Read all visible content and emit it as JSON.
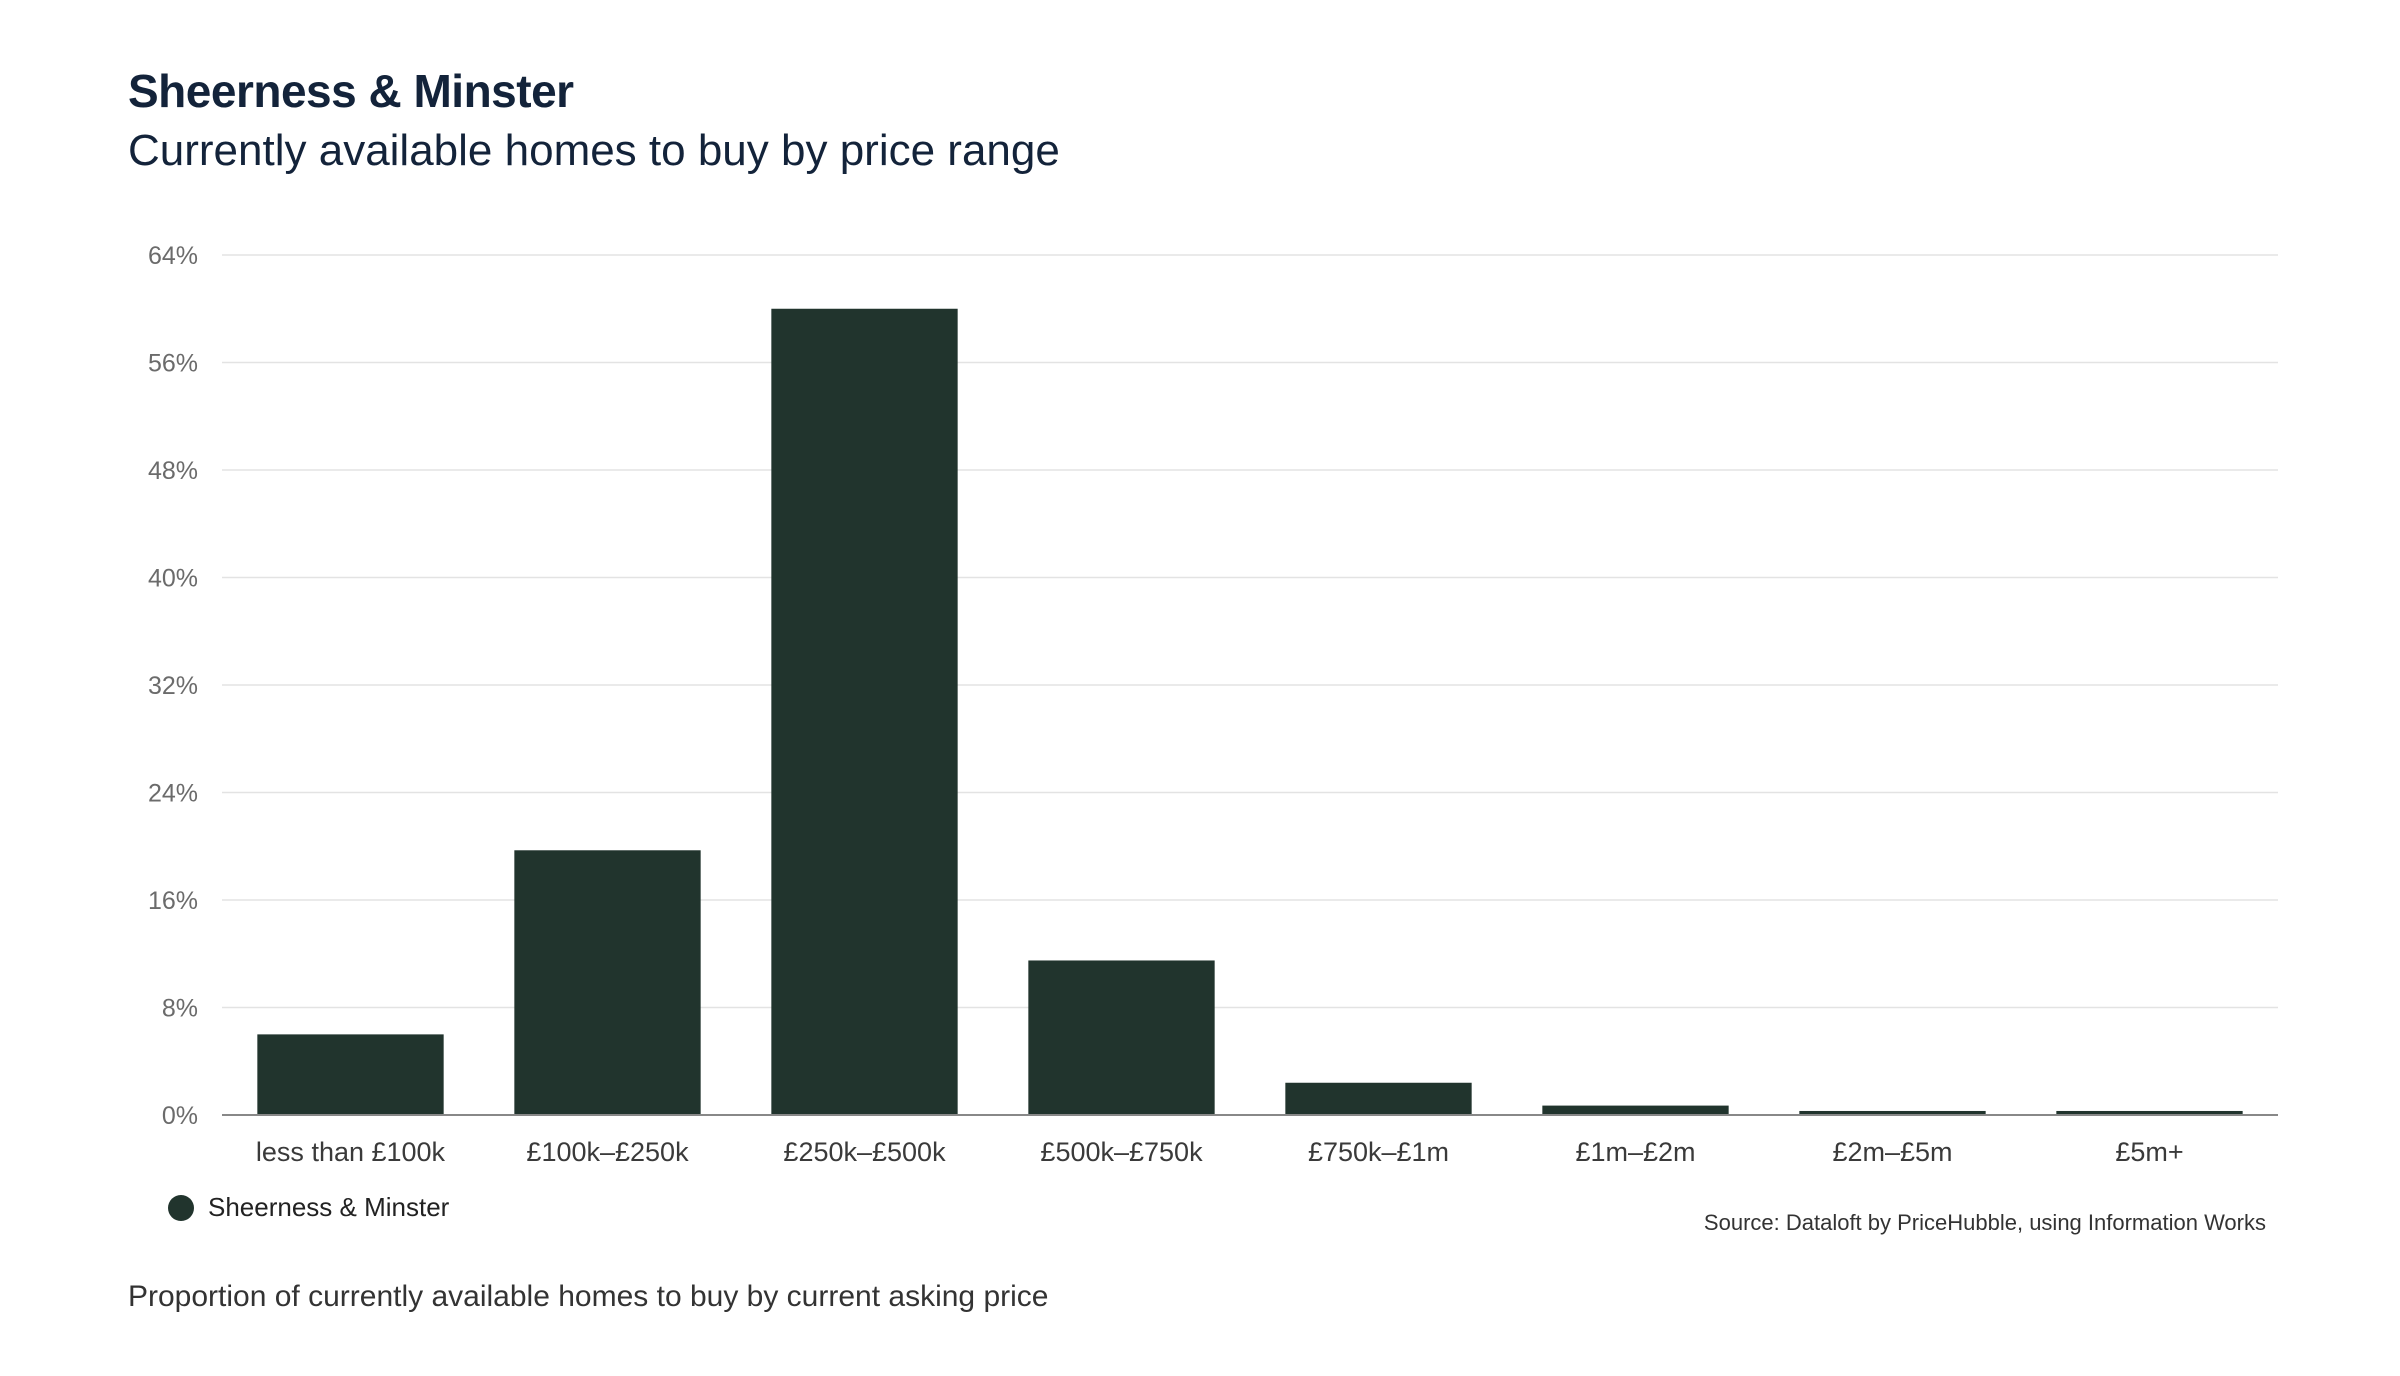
{
  "header": {
    "title": "Sheerness & Minster",
    "subtitle": "Currently available homes to buy by price range"
  },
  "legend": {
    "label": "Sheerness & Minster",
    "color": "#21342d"
  },
  "source": "Source: Dataloft by PriceHubble, using Information Works",
  "caption": "Proportion of currently available homes to buy by current asking price",
  "colors": {
    "bar": "#21342d",
    "grid": "#e3e3e3",
    "axis": "#888888"
  },
  "chart_data": {
    "type": "bar",
    "title": "Sheerness & Minster",
    "subtitle": "Currently available homes to buy by price range",
    "xlabel": "",
    "ylabel": "",
    "categories": [
      "less than £100k",
      "£100k–£250k",
      "£250k–£500k",
      "£500k–£750k",
      "£750k–£1m",
      "£1m–£2m",
      "£2m–£5m",
      "£5m+"
    ],
    "series": [
      {
        "name": "Sheerness & Minster",
        "values": [
          6.0,
          19.7,
          60.0,
          11.5,
          2.4,
          0.7,
          0.3,
          0.3
        ]
      }
    ],
    "ylim": [
      0,
      64
    ],
    "yticks": [
      0,
      8,
      16,
      24,
      32,
      40,
      48,
      56,
      64
    ],
    "ytick_labels": [
      "0%",
      "8%",
      "16%",
      "24%",
      "32%",
      "40%",
      "48%",
      "56%",
      "64%"
    ],
    "grid": true,
    "legend_position": "bottom-left"
  }
}
